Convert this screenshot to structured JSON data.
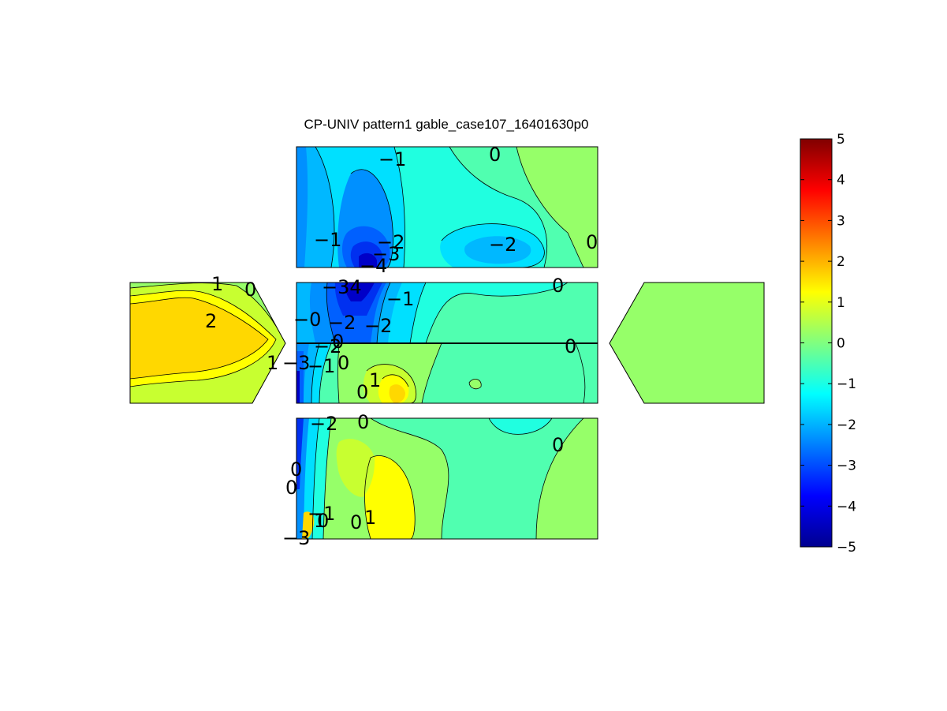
{
  "chart_data": {
    "type": "heatmap",
    "title": "CP-UNIV pattern1 gable_case107_16401630p0",
    "colorbar": {
      "min": -5,
      "max": 5,
      "ticks": [
        "5",
        "4",
        "3",
        "2",
        "1",
        "0",
        "−1",
        "−2",
        "−3",
        "−4",
        "−5"
      ],
      "colormap": "jet"
    },
    "contour_labels": [
      {
        "text": "−1"
      },
      {
        "text": "0"
      },
      {
        "text": "−1"
      },
      {
        "text": "−2"
      },
      {
        "text": "−3"
      },
      {
        "text": "−4"
      },
      {
        "text": "−2"
      },
      {
        "text": "0"
      },
      {
        "text": "1"
      },
      {
        "text": "0"
      },
      {
        "text": "2"
      },
      {
        "text": "1"
      },
      {
        "text": "−3"
      },
      {
        "text": "−1"
      },
      {
        "text": "0"
      },
      {
        "text": "−34"
      },
      {
        "text": "−1"
      },
      {
        "text": "0"
      },
      {
        "text": "−0"
      },
      {
        "text": "−2"
      },
      {
        "text": "−2"
      },
      {
        "text": "0"
      },
      {
        "text": "−2"
      },
      {
        "text": "0"
      },
      {
        "text": "0"
      },
      {
        "text": "1"
      },
      {
        "text": "0"
      },
      {
        "text": "−2"
      },
      {
        "text": "0"
      },
      {
        "text": "0"
      },
      {
        "text": "0"
      },
      {
        "text": "−1"
      },
      {
        "text": "0"
      },
      {
        "text": "1"
      },
      {
        "text": "0"
      },
      {
        "text": "1"
      },
      {
        "text": "−3"
      }
    ]
  }
}
